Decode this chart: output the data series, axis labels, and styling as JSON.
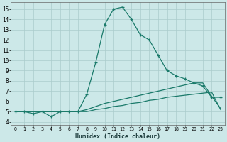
{
  "xlabel": "Humidex (Indice chaleur)",
  "x_ticks": [
    0,
    1,
    2,
    3,
    4,
    5,
    6,
    7,
    8,
    9,
    10,
    11,
    12,
    13,
    14,
    15,
    16,
    17,
    18,
    19,
    20,
    21,
    22,
    23
  ],
  "y_ticks": [
    4,
    5,
    6,
    7,
    8,
    9,
    10,
    11,
    12,
    13,
    14,
    15
  ],
  "ylim": [
    3.7,
    15.7
  ],
  "xlim": [
    -0.5,
    23.5
  ],
  "bg_color": "#cce8e8",
  "grid_color": "#aacccc",
  "line_color": "#1a7a6a",
  "series1_x": [
    0,
    1,
    2,
    3,
    4,
    5,
    6,
    7,
    8,
    9,
    10,
    11,
    12,
    13,
    14,
    15,
    16,
    17,
    18,
    19,
    20,
    21,
    22,
    23
  ],
  "series1_y": [
    5.0,
    5.0,
    4.8,
    5.0,
    4.5,
    5.0,
    5.0,
    5.0,
    6.7,
    9.8,
    13.5,
    15.0,
    15.2,
    14.0,
    12.5,
    12.0,
    10.5,
    9.0,
    8.5,
    8.2,
    7.8,
    7.5,
    6.4,
    6.4
  ],
  "series2_x": [
    0,
    1,
    2,
    3,
    4,
    5,
    6,
    7,
    8,
    9,
    10,
    11,
    12,
    13,
    14,
    15,
    16,
    17,
    18,
    19,
    20,
    21,
    22,
    23
  ],
  "series2_y": [
    5.0,
    5.0,
    5.0,
    5.0,
    5.0,
    5.0,
    5.0,
    5.0,
    5.2,
    5.5,
    5.8,
    6.0,
    6.2,
    6.4,
    6.6,
    6.8,
    7.0,
    7.2,
    7.4,
    7.6,
    7.8,
    7.8,
    6.5,
    5.3
  ],
  "series3_x": [
    0,
    1,
    2,
    3,
    4,
    5,
    6,
    7,
    8,
    9,
    10,
    11,
    12,
    13,
    14,
    15,
    16,
    17,
    18,
    19,
    20,
    21,
    22,
    23
  ],
  "series3_y": [
    5.0,
    5.0,
    5.0,
    5.0,
    5.0,
    5.0,
    5.0,
    5.0,
    5.0,
    5.2,
    5.3,
    5.5,
    5.6,
    5.8,
    5.9,
    6.1,
    6.2,
    6.4,
    6.5,
    6.6,
    6.7,
    6.8,
    6.9,
    5.2
  ]
}
